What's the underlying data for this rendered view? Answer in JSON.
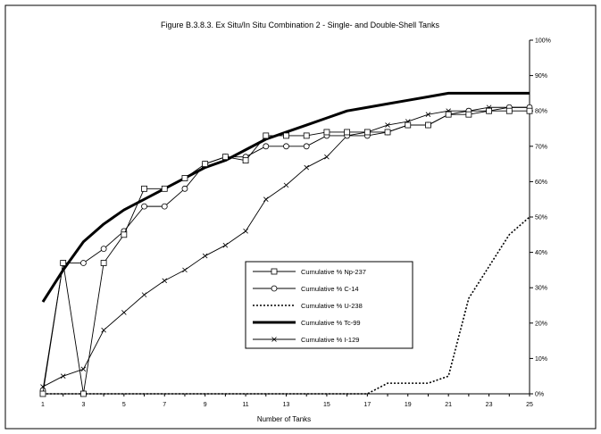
{
  "chart_data": {
    "type": "line",
    "title": "Figure B.3.8.3. Ex Situ/In Situ Combination 2 - Single- and Double-Shell Tanks",
    "xlabel": "Number of Tanks",
    "ylabel": "",
    "x": [
      1,
      2,
      3,
      4,
      5,
      6,
      7,
      8,
      9,
      10,
      11,
      12,
      13,
      14,
      15,
      16,
      17,
      18,
      19,
      20,
      21,
      22,
      23,
      24,
      25
    ],
    "x_ticks": [
      1,
      3,
      5,
      7,
      9,
      11,
      13,
      15,
      17,
      19,
      21,
      23,
      25
    ],
    "x_tick_labels": [
      "1",
      "3",
      "5",
      "7",
      "9",
      "11",
      "13",
      "15",
      "17",
      "19",
      "21",
      "23",
      "25"
    ],
    "xlim": [
      1,
      25
    ],
    "ylim": [
      0,
      100
    ],
    "y_ticks": [
      0,
      10,
      20,
      30,
      40,
      50,
      60,
      70,
      80,
      90,
      100
    ],
    "y_tick_labels": [
      "0%",
      "10%",
      "20%",
      "30%",
      "40%",
      "50%",
      "60%",
      "70%",
      "80%",
      "90%",
      "100%"
    ],
    "grid": false,
    "legend_position": "center-right",
    "series": [
      {
        "name": "Cumulative % Np-237",
        "style": "thin",
        "marker": "square",
        "values": [
          0,
          37,
          0,
          37,
          45,
          58,
          58,
          61,
          65,
          67,
          66,
          73,
          73,
          73,
          74,
          74,
          74,
          74,
          76,
          76,
          79,
          79,
          80,
          80,
          80
        ]
      },
      {
        "name": "Cumulative % C-14",
        "style": "thin",
        "marker": "circle",
        "values": [
          1,
          37,
          37,
          41,
          46,
          53,
          53,
          58,
          65,
          67,
          67,
          70,
          70,
          70,
          73,
          73,
          73,
          74,
          76,
          76,
          79,
          80,
          80,
          81,
          81
        ]
      },
      {
        "name": "Cumulative % U-238",
        "style": "dotted",
        "marker": "none",
        "values": [
          0,
          0,
          0,
          0,
          0,
          0,
          0,
          0,
          0,
          0,
          0,
          0,
          0,
          0,
          0,
          0,
          0,
          3,
          3,
          3,
          5,
          27,
          36,
          45,
          50
        ]
      },
      {
        "name": "Cumulative % Tc-99",
        "style": "thick",
        "marker": "none",
        "values": [
          26,
          35,
          43,
          48,
          52,
          55,
          58,
          61,
          64,
          66,
          69,
          72,
          74,
          76,
          78,
          80,
          81,
          82,
          83,
          84,
          85,
          85,
          85,
          85,
          85
        ]
      },
      {
        "name": "Cumulative % I-129",
        "style": "thin",
        "marker": "x",
        "values": [
          2,
          5,
          7,
          18,
          23,
          28,
          32,
          35,
          39,
          42,
          46,
          55,
          59,
          64,
          67,
          73,
          74,
          76,
          77,
          79,
          80,
          80,
          81,
          81,
          81
        ]
      }
    ]
  }
}
